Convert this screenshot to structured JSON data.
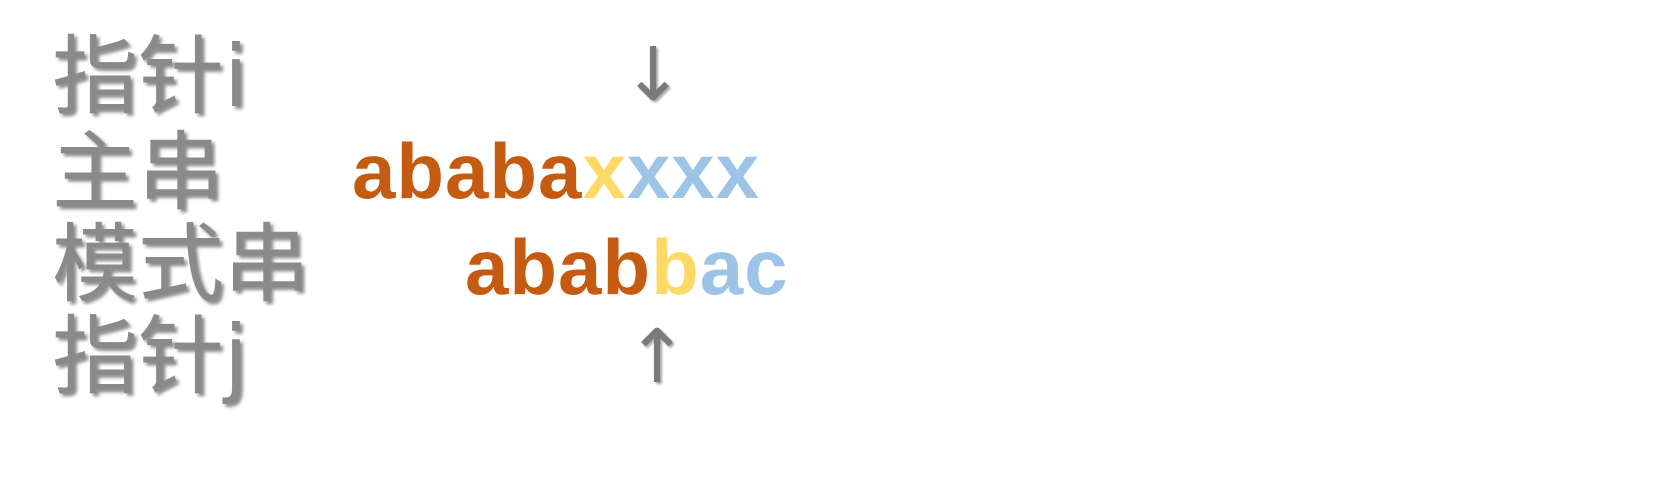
{
  "labels": {
    "pointer_i": "指针i",
    "main_string": "主串",
    "pattern_string": "模式串",
    "pointer_j": "指针j"
  },
  "arrows": {
    "pointer_i": "↓",
    "pointer_j": "↑"
  },
  "main_string": {
    "matched": "ababa",
    "current": "x",
    "rest": "xxx"
  },
  "pattern_string": {
    "matched": "abab",
    "current": "b",
    "rest": "ac"
  },
  "colors": {
    "matched": "#c55a11",
    "current": "#ffd966",
    "rest": "#9dc3e6",
    "label": "#8a8a8a"
  }
}
